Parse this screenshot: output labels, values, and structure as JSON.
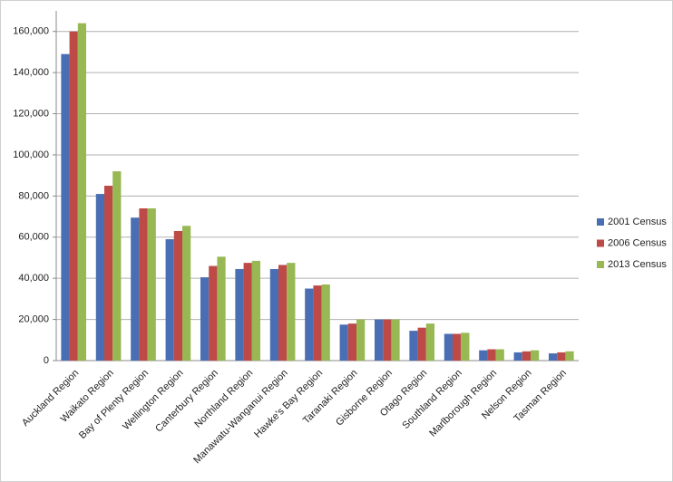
{
  "chart_data": {
    "type": "bar",
    "categories": [
      "Auckland Region",
      "Waikato Region",
      "Bay of Plenty Region",
      "Wellington Region",
      "Canterbury Region",
      "Northland Region",
      "Manawatu-Wanganui Region",
      "Hawke's Bay Region",
      "Taranaki Region",
      "Gisborne Region",
      "Otago Region",
      "Southland Region",
      "Marlborough Region",
      "Nelson Region",
      "Tasman Region"
    ],
    "series": [
      {
        "name": "2001 Census",
        "color": "#4a6eb4",
        "values": [
          149000,
          81000,
          69500,
          59000,
          40500,
          44500,
          44500,
          35000,
          17500,
          20000,
          14500,
          13000,
          5000,
          4000,
          3500
        ]
      },
      {
        "name": "2006 Census",
        "color": "#bd4a47",
        "values": [
          160000,
          85000,
          74000,
          63000,
          46000,
          47500,
          46500,
          36500,
          18000,
          20000,
          16000,
          13000,
          5500,
          4500,
          4000
        ]
      },
      {
        "name": "2013 Census",
        "color": "#97b852",
        "values": [
          164000,
          92000,
          74000,
          65500,
          50500,
          48500,
          47500,
          37000,
          20000,
          20000,
          18000,
          13500,
          5500,
          5000,
          4500
        ]
      }
    ],
    "ylim": [
      0,
      170000
    ],
    "yticks": [
      0,
      {
        "value": 20000,
        "label": "20,000"
      },
      {
        "value": 40000,
        "label": "40,000"
      },
      {
        "value": 60000,
        "label": "60,000"
      },
      {
        "value": 80000,
        "label": "80,000"
      },
      {
        "value": 100000,
        "label": "100,000"
      },
      {
        "value": 120000,
        "label": "120,000"
      },
      {
        "value": 140000,
        "label": "140,000"
      },
      {
        "value": 160000,
        "label": "160,000"
      }
    ],
    "grid": true,
    "legend": "right"
  }
}
